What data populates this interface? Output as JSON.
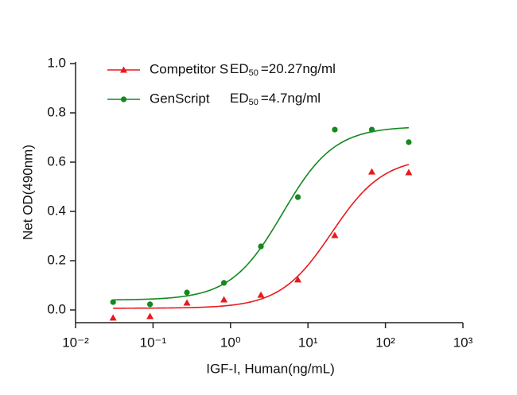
{
  "chart_data": {
    "type": "scatter",
    "x_label": "IGF-I, Human(ng/mL)",
    "y_label": "Net OD(490nm)",
    "log_x": true,
    "xlim": [
      0.01,
      1000
    ],
    "xticks": [
      {
        "value": 0.01,
        "label": "10⁻²"
      },
      {
        "value": 0.1,
        "label": "10⁻¹"
      },
      {
        "value": 1,
        "label": "10⁰"
      },
      {
        "value": 10,
        "label": "10¹"
      },
      {
        "value": 100,
        "label": "10²"
      },
      {
        "value": 1000,
        "label": "10³"
      }
    ],
    "ylim": [
      -0.05,
      1.0
    ],
    "yticks": [
      {
        "value": 0,
        "label": "0.0"
      },
      0.2,
      0.4,
      0.6,
      0.8,
      {
        "value": 1,
        "label": "1.0"
      }
    ],
    "x": [
      0.0305,
      0.0914,
      0.274,
      0.823,
      2.47,
      7.41,
      22.2,
      66.7,
      200
    ],
    "series": [
      {
        "name": "Competitor S",
        "ed_label": "ED",
        "ed_sub": "50",
        "ed_text": "=20.27ng/ml",
        "color": "#e8191b",
        "marker": "triangle",
        "values": [
          -0.032,
          -0.026,
          0.029,
          0.042,
          0.061,
          0.123,
          0.303,
          0.561,
          0.558
        ],
        "fit": {
          "bottom": 0.007,
          "top": 0.62,
          "ec50": 20.27,
          "hill": 1.3
        }
      },
      {
        "name": "GenScript",
        "ed_label": "ED",
        "ed_sub": "50",
        "ed_text": "=4.7ng/ml",
        "color": "#13891e",
        "marker": "circle",
        "values": [
          0.032,
          0.023,
          0.071,
          0.11,
          0.258,
          0.458,
          0.732,
          0.732,
          0.681
        ],
        "fit": {
          "bottom": 0.04,
          "top": 0.745,
          "ec50": 4.7,
          "hill": 1.3
        }
      }
    ]
  }
}
